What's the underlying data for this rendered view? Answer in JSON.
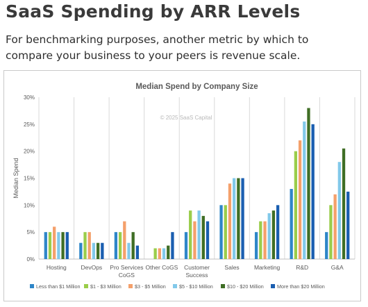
{
  "page": {
    "title": "SaaS Spending by ARR Levels",
    "subtitle": "For benchmarking purposes, another metric by which to compare your business to your peers is revenue scale."
  },
  "chart_data": {
    "type": "bar",
    "title": "Median Spend by Company Size",
    "watermark": "© 2025 SaaS Capital",
    "xlabel": "",
    "ylabel": "Median Spend",
    "ylim": [
      0,
      30
    ],
    "yticks": [
      "0%",
      "5%",
      "10%",
      "15%",
      "20%",
      "25%",
      "30%"
    ],
    "grid": "vertical-category-separators",
    "legend": "bottom",
    "categories": [
      [
        "Hosting"
      ],
      [
        "DevOps"
      ],
      [
        "Pro Services",
        "CoGS"
      ],
      [
        "Other CoGS"
      ],
      [
        "Customer",
        "Success"
      ],
      [
        "Sales"
      ],
      [
        "Marketing"
      ],
      [
        "R&D"
      ],
      [
        "G&A"
      ]
    ],
    "series": [
      {
        "name": "Less than $1 Million",
        "color": "#2e86c8",
        "values": [
          5,
          3,
          5,
          0,
          5,
          10,
          5,
          13,
          5
        ]
      },
      {
        "name": "$1 - $3 Million",
        "color": "#9acd4a",
        "values": [
          5,
          5,
          5,
          2,
          9,
          10,
          7,
          20,
          10
        ]
      },
      {
        "name": "$3 - $5 Million",
        "color": "#f4a06b",
        "values": [
          6,
          5,
          7,
          2,
          7,
          14,
          7,
          22,
          12
        ]
      },
      {
        "name": "$5 - $10 Million",
        "color": "#82c9ea",
        "values": [
          5,
          3,
          3,
          2,
          9,
          15,
          8.5,
          25.5,
          18
        ]
      },
      {
        "name": "$10 - $20 Million",
        "color": "#3f6e25",
        "values": [
          5,
          3,
          5,
          2.5,
          8,
          15,
          9,
          28,
          20.5
        ]
      },
      {
        "name": "More than $20 Million",
        "color": "#1a5eb0",
        "values": [
          5,
          3,
          2.5,
          5,
          7,
          15,
          10,
          25,
          12.5
        ]
      }
    ]
  }
}
